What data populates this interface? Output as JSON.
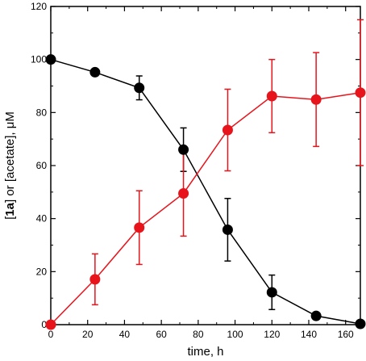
{
  "chart_data": {
    "type": "scatter",
    "xlabel": "time, h",
    "ylabel": {
      "prefix": "[",
      "bold": "1a",
      "suffix": "] or [acetate], μM"
    },
    "xlim": [
      0,
      168
    ],
    "ylim": [
      0,
      120
    ],
    "xticks": [
      0,
      20,
      40,
      60,
      80,
      100,
      120,
      140,
      160
    ],
    "yticks": [
      0,
      20,
      40,
      60,
      80,
      100,
      120
    ],
    "grid": false,
    "legend": "none",
    "series": [
      {
        "color": "#000000",
        "connected": true,
        "points": [
          {
            "x": 0,
            "y": 100,
            "err": null
          },
          {
            "x": 24,
            "y": 95.2,
            "err": null
          },
          {
            "x": 48,
            "y": 89.3,
            "err": 4.5
          },
          {
            "x": 72,
            "y": 66,
            "err": 8.2
          },
          {
            "x": 96,
            "y": 35.8,
            "err": 11.8
          },
          {
            "x": 120,
            "y": 12.2,
            "err": 6.5
          },
          {
            "x": 144,
            "y": 3.3,
            "err": null
          },
          {
            "x": 168,
            "y": 0.3,
            "err": null
          }
        ]
      },
      {
        "color": "#e8141c",
        "connected": true,
        "points": [
          {
            "x": 0,
            "y": 0,
            "err": null
          },
          {
            "x": 24,
            "y": 17.1,
            "err": 9.6
          },
          {
            "x": 48,
            "y": 36.6,
            "err": 13.9
          },
          {
            "x": 72,
            "y": 49.5,
            "err": 16.1
          },
          {
            "x": 96,
            "y": 73.4,
            "err": 15.4
          },
          {
            "x": 120,
            "y": 86.2,
            "err": 13.8
          },
          {
            "x": 144,
            "y": 84.9,
            "err": 17.7
          },
          {
            "x": 168,
            "y": 87.5,
            "err": 27.5
          }
        ]
      }
    ]
  }
}
